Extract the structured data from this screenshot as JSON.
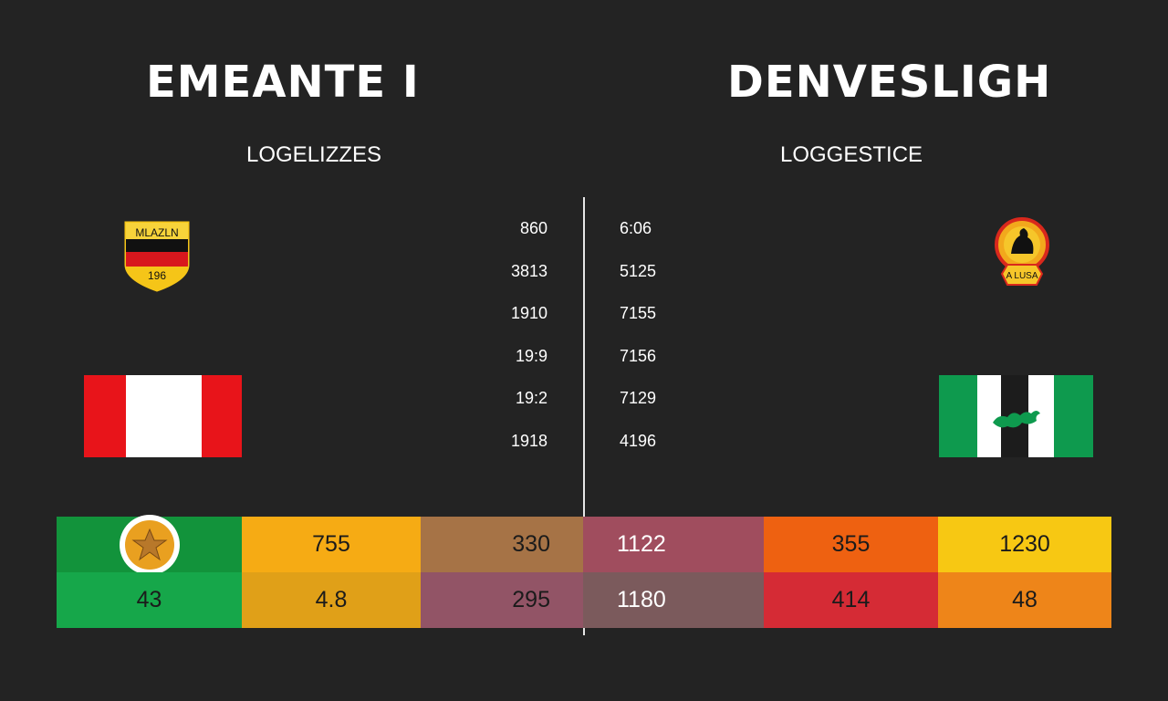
{
  "left_team": {
    "title": "EMEANTE I",
    "subtitle": "LOGELIZZES",
    "crest_text_top": "MLAZLN",
    "crest_text_bottom": "196",
    "stats": [
      "860",
      "3813",
      "1910",
      "19:9",
      "19:2",
      "1918"
    ],
    "flag_colors": [
      "#e8141a",
      "#ffffff",
      "#e8141a"
    ]
  },
  "right_team": {
    "title": "DENVESLIGH",
    "subtitle": "LOGGESTICE",
    "emblem_text": "A LUSA",
    "stats": [
      "6:06",
      "5125",
      "7155",
      "7156",
      "7129",
      "4196"
    ],
    "flag_colors": [
      "#0e9a4e",
      "#ffffff",
      "#1c1c1c",
      "#ffffff",
      "#0e9a4e"
    ]
  },
  "scoreboard": {
    "row1": {
      "icon": "star-icon",
      "values": [
        "755",
        "330",
        "1122",
        "355",
        "1230"
      ],
      "colors": [
        "#12933b",
        "#f6ab14",
        "#a67346",
        "#a04d5e",
        "#ee6111",
        "#f7c813"
      ]
    },
    "row2": {
      "values": [
        "43",
        "4.8",
        "295",
        "1180",
        "414",
        "48"
      ],
      "colors": [
        "#16a74a",
        "#e0a018",
        "#925466",
        "#7b5a5c",
        "#d52b35",
        "#ee8519"
      ]
    }
  }
}
